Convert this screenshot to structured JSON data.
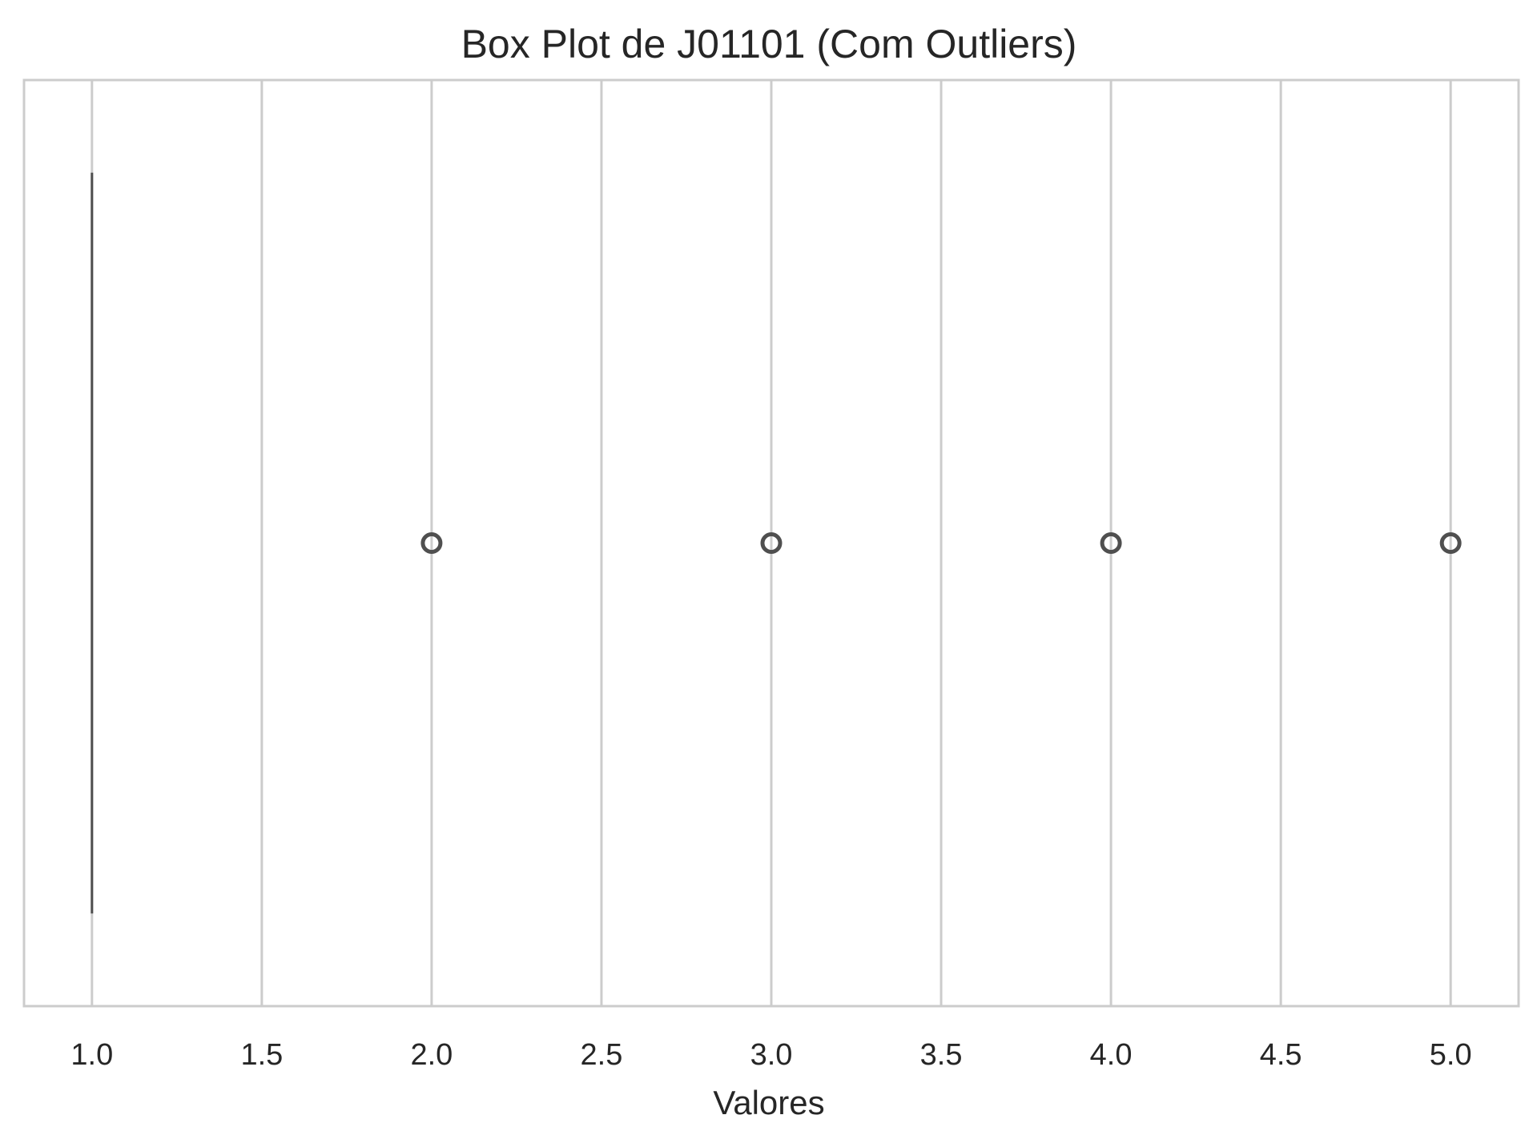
{
  "chart_data": {
    "type": "box",
    "orientation": "horizontal",
    "title": "Box Plot de J01101 (Com Outliers)",
    "xlabel": "Valores",
    "ylabel": "",
    "xlim": [
      0.8,
      5.2
    ],
    "xticks": [
      1.0,
      1.5,
      2.0,
      2.5,
      3.0,
      3.5,
      4.0,
      4.5,
      5.0
    ],
    "xtick_labels": [
      "1.0",
      "1.5",
      "2.0",
      "2.5",
      "3.0",
      "3.5",
      "4.0",
      "4.5",
      "5.0"
    ],
    "grid": "vertical",
    "box": {
      "min": 1,
      "q1": 1,
      "median": 1,
      "q3": 1,
      "max": 1
    },
    "outliers": [
      2,
      3,
      4,
      5
    ],
    "colors": {
      "box_line": "#4f4f4f",
      "outlier": "#4f4f4f",
      "grid": "#cccccc",
      "spine": "#cccccc",
      "text": "#262626"
    }
  }
}
